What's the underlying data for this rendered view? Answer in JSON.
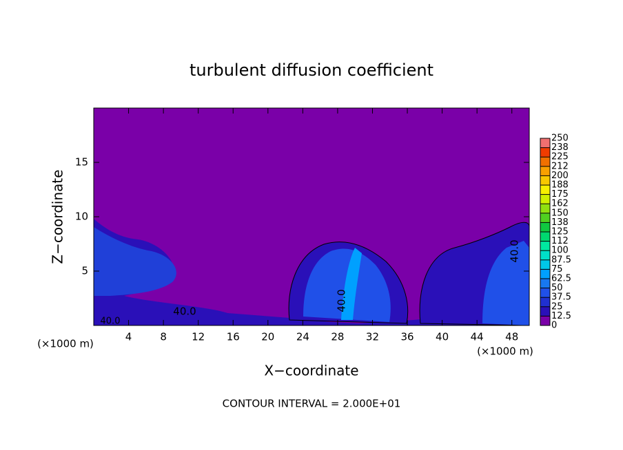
{
  "chart_data": {
    "type": "contour",
    "title": "turbulent diffusion coefficient",
    "xlabel": "X−coordinate",
    "ylabel": "Z−coordinate",
    "x_unit": "(×1000 m)",
    "footer": "CONTOUR INTERVAL = 2.000E+01",
    "contour_labels": [
      "40.0",
      "40.0",
      "40.0",
      "40.0"
    ],
    "xlim": [
      0,
      50
    ],
    "xticks": [
      4,
      8,
      12,
      16,
      20,
      24,
      28,
      32,
      36,
      40,
      44,
      48
    ],
    "ylim": [
      0,
      20
    ],
    "yticks": [
      5,
      10,
      15
    ],
    "colorbar": {
      "ticks": [
        0,
        12.5,
        25,
        37.5,
        50,
        62.5,
        75,
        87.5,
        100,
        {
          "value": 112.5,
          "label": "112"
        },
        125,
        {
          "value": 137.5,
          "label": "138"
        },
        150,
        {
          "value": 162.5,
          "label": "162"
        },
        175,
        {
          "value": 187.5,
          "label": "188"
        },
        200,
        {
          "value": 212.5,
          "label": "212"
        },
        225,
        {
          "value": 237.5,
          "label": "238"
        },
        250
      ],
      "colors": [
        "#7a00a8",
        "#2a10b8",
        "#2030d0",
        "#2050e8",
        "#1878f0",
        "#00a0ff",
        "#00c8e8",
        "#00e0c8",
        "#00e8a0",
        "#00d870",
        "#10c840",
        "#50d020",
        "#90e010",
        "#d0f000",
        "#f8f000",
        "#f8c800",
        "#f8a000",
        "#f07000",
        "#f03c00",
        "#f07070"
      ]
    }
  }
}
